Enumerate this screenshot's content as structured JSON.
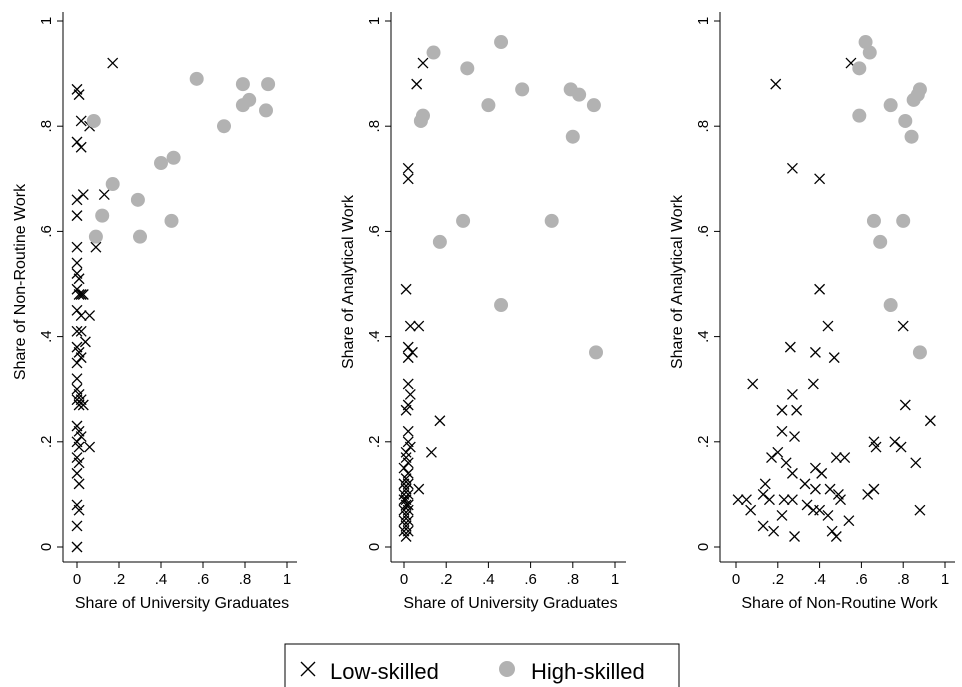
{
  "colors": {
    "low": "#000000",
    "high": "#b2b2b2",
    "axis": "#000000"
  },
  "legend": {
    "low_label": "Low-skilled",
    "high_label": "High-skilled"
  },
  "chart_data": [
    {
      "type": "scatter",
      "xlabel": "Share of University Graduates",
      "ylabel": "Share of Non-Routine Work",
      "xlim": [
        0,
        1
      ],
      "ylim": [
        0,
        1
      ],
      "xticks": [
        "0",
        ".2",
        ".4",
        ".6",
        ".8",
        "1"
      ],
      "yticks": [
        "0",
        ".2",
        ".4",
        ".6",
        ".8",
        "1"
      ],
      "series": [
        {
          "name": "Low-skilled",
          "points": [
            [
              0.0,
              0.87
            ],
            [
              0.01,
              0.86
            ],
            [
              0.02,
              0.81
            ],
            [
              0.0,
              0.77
            ],
            [
              0.02,
              0.76
            ],
            [
              0.06,
              0.8
            ],
            [
              0.17,
              0.92
            ],
            [
              0.13,
              0.67
            ],
            [
              0.03,
              0.67
            ],
            [
              0.0,
              0.66
            ],
            [
              0.0,
              0.63
            ],
            [
              0.09,
              0.57
            ],
            [
              0.0,
              0.57
            ],
            [
              0.0,
              0.54
            ],
            [
              0.0,
              0.52
            ],
            [
              0.01,
              0.51
            ],
            [
              0.0,
              0.49
            ],
            [
              0.01,
              0.48
            ],
            [
              0.02,
              0.48
            ],
            [
              0.03,
              0.48
            ],
            [
              0.0,
              0.45
            ],
            [
              0.02,
              0.44
            ],
            [
              0.06,
              0.44
            ],
            [
              0.0,
              0.41
            ],
            [
              0.02,
              0.41
            ],
            [
              0.04,
              0.39
            ],
            [
              0.0,
              0.38
            ],
            [
              0.01,
              0.37
            ],
            [
              0.02,
              0.36
            ],
            [
              0.0,
              0.35
            ],
            [
              0.0,
              0.32
            ],
            [
              0.0,
              0.3
            ],
            [
              0.01,
              0.29
            ],
            [
              0.0,
              0.28
            ],
            [
              0.02,
              0.28
            ],
            [
              0.03,
              0.27
            ],
            [
              0.01,
              0.27
            ],
            [
              0.0,
              0.23
            ],
            [
              0.01,
              0.22
            ],
            [
              0.02,
              0.21
            ],
            [
              0.0,
              0.2
            ],
            [
              0.01,
              0.19
            ],
            [
              0.06,
              0.19
            ],
            [
              0.0,
              0.17
            ],
            [
              0.01,
              0.16
            ],
            [
              0.0,
              0.14
            ],
            [
              0.01,
              0.12
            ],
            [
              0.0,
              0.08
            ],
            [
              0.01,
              0.07
            ],
            [
              0.0,
              0.04
            ],
            [
              0.0,
              0.0
            ]
          ]
        },
        {
          "name": "High-skilled",
          "points": [
            [
              0.08,
              0.81
            ],
            [
              0.57,
              0.89
            ],
            [
              0.79,
              0.88
            ],
            [
              0.91,
              0.88
            ],
            [
              0.79,
              0.84
            ],
            [
              0.82,
              0.85
            ],
            [
              0.9,
              0.83
            ],
            [
              0.7,
              0.8
            ],
            [
              0.46,
              0.74
            ],
            [
              0.4,
              0.73
            ],
            [
              0.17,
              0.69
            ],
            [
              0.29,
              0.66
            ],
            [
              0.12,
              0.63
            ],
            [
              0.45,
              0.62
            ],
            [
              0.09,
              0.59
            ],
            [
              0.3,
              0.59
            ]
          ]
        }
      ]
    },
    {
      "type": "scatter",
      "xlabel": "Share of University Graduates",
      "ylabel": "Share of Analytical Work",
      "xlim": [
        0,
        1
      ],
      "ylim": [
        0,
        1
      ],
      "xticks": [
        "0",
        ".2",
        ".4",
        ".6",
        ".8",
        "1"
      ],
      "yticks": [
        "0",
        ".2",
        ".4",
        ".6",
        ".8",
        "1"
      ],
      "series": [
        {
          "name": "Low-skilled",
          "points": [
            [
              0.09,
              0.92
            ],
            [
              0.06,
              0.88
            ],
            [
              0.02,
              0.72
            ],
            [
              0.02,
              0.7
            ],
            [
              0.01,
              0.49
            ],
            [
              0.03,
              0.42
            ],
            [
              0.07,
              0.42
            ],
            [
              0.02,
              0.38
            ],
            [
              0.04,
              0.37
            ],
            [
              0.02,
              0.36
            ],
            [
              0.02,
              0.31
            ],
            [
              0.03,
              0.29
            ],
            [
              0.02,
              0.27
            ],
            [
              0.01,
              0.26
            ],
            [
              0.17,
              0.24
            ],
            [
              0.02,
              0.22
            ],
            [
              0.02,
              0.2
            ],
            [
              0.03,
              0.19
            ],
            [
              0.13,
              0.18
            ],
            [
              0.01,
              0.18
            ],
            [
              0.01,
              0.17
            ],
            [
              0.02,
              0.16
            ],
            [
              0.0,
              0.15
            ],
            [
              0.02,
              0.14
            ],
            [
              0.01,
              0.13
            ],
            [
              0.0,
              0.12
            ],
            [
              0.02,
              0.12
            ],
            [
              0.07,
              0.11
            ],
            [
              0.01,
              0.11
            ],
            [
              0.0,
              0.1
            ],
            [
              0.02,
              0.1
            ],
            [
              0.01,
              0.09
            ],
            [
              0.0,
              0.09
            ],
            [
              0.02,
              0.08
            ],
            [
              0.01,
              0.08
            ],
            [
              0.0,
              0.07
            ],
            [
              0.02,
              0.07
            ],
            [
              0.01,
              0.06
            ],
            [
              0.0,
              0.05
            ],
            [
              0.02,
              0.05
            ],
            [
              0.01,
              0.04
            ],
            [
              0.0,
              0.03
            ],
            [
              0.02,
              0.03
            ],
            [
              0.01,
              0.02
            ]
          ]
        },
        {
          "name": "High-skilled",
          "points": [
            [
              0.46,
              0.96
            ],
            [
              0.14,
              0.94
            ],
            [
              0.3,
              0.91
            ],
            [
              0.79,
              0.87
            ],
            [
              0.56,
              0.87
            ],
            [
              0.83,
              0.86
            ],
            [
              0.9,
              0.84
            ],
            [
              0.4,
              0.84
            ],
            [
              0.09,
              0.82
            ],
            [
              0.08,
              0.81
            ],
            [
              0.8,
              0.78
            ],
            [
              0.28,
              0.62
            ],
            [
              0.7,
              0.62
            ],
            [
              0.17,
              0.58
            ],
            [
              0.46,
              0.46
            ],
            [
              0.91,
              0.37
            ]
          ]
        }
      ]
    },
    {
      "type": "scatter",
      "xlabel": "Share of Non-Routine Work",
      "ylabel": "Share of Analytical Work",
      "xlim": [
        0,
        1
      ],
      "ylim": [
        0,
        1
      ],
      "xticks": [
        "0",
        ".2",
        ".4",
        ".6",
        ".8",
        "1"
      ],
      "yticks": [
        "0",
        ".2",
        ".4",
        ".6",
        ".8",
        "1"
      ],
      "series": [
        {
          "name": "Low-skilled",
          "points": [
            [
              0.55,
              0.92
            ],
            [
              0.19,
              0.88
            ],
            [
              0.27,
              0.72
            ],
            [
              0.4,
              0.7
            ],
            [
              0.4,
              0.49
            ],
            [
              0.44,
              0.42
            ],
            [
              0.8,
              0.42
            ],
            [
              0.26,
              0.38
            ],
            [
              0.38,
              0.37
            ],
            [
              0.47,
              0.36
            ],
            [
              0.08,
              0.31
            ],
            [
              0.37,
              0.31
            ],
            [
              0.27,
              0.29
            ],
            [
              0.81,
              0.27
            ],
            [
              0.22,
              0.26
            ],
            [
              0.29,
              0.26
            ],
            [
              0.93,
              0.24
            ],
            [
              0.22,
              0.22
            ],
            [
              0.28,
              0.21
            ],
            [
              0.66,
              0.2
            ],
            [
              0.76,
              0.2
            ],
            [
              0.67,
              0.19
            ],
            [
              0.79,
              0.19
            ],
            [
              0.2,
              0.18
            ],
            [
              0.17,
              0.17
            ],
            [
              0.48,
              0.17
            ],
            [
              0.52,
              0.17
            ],
            [
              0.86,
              0.16
            ],
            [
              0.24,
              0.16
            ],
            [
              0.38,
              0.15
            ],
            [
              0.27,
              0.14
            ],
            [
              0.41,
              0.14
            ],
            [
              0.14,
              0.12
            ],
            [
              0.33,
              0.12
            ],
            [
              0.38,
              0.11
            ],
            [
              0.45,
              0.11
            ],
            [
              0.66,
              0.11
            ],
            [
              0.13,
              0.1
            ],
            [
              0.49,
              0.1
            ],
            [
              0.5,
              0.09
            ],
            [
              0.63,
              0.1
            ],
            [
              0.01,
              0.09
            ],
            [
              0.05,
              0.09
            ],
            [
              0.16,
              0.09
            ],
            [
              0.23,
              0.09
            ],
            [
              0.27,
              0.09
            ],
            [
              0.34,
              0.08
            ],
            [
              0.4,
              0.07
            ],
            [
              0.07,
              0.07
            ],
            [
              0.22,
              0.06
            ],
            [
              0.44,
              0.06
            ],
            [
              0.54,
              0.05
            ],
            [
              0.88,
              0.07
            ],
            [
              0.13,
              0.04
            ],
            [
              0.18,
              0.03
            ],
            [
              0.46,
              0.03
            ],
            [
              0.48,
              0.02
            ],
            [
              0.28,
              0.02
            ],
            [
              0.37,
              0.07
            ]
          ]
        },
        {
          "name": "High-skilled",
          "points": [
            [
              0.62,
              0.96
            ],
            [
              0.64,
              0.94
            ],
            [
              0.59,
              0.91
            ],
            [
              0.88,
              0.87
            ],
            [
              0.87,
              0.86
            ],
            [
              0.85,
              0.85
            ],
            [
              0.74,
              0.84
            ],
            [
              0.59,
              0.82
            ],
            [
              0.81,
              0.81
            ],
            [
              0.84,
              0.78
            ],
            [
              0.66,
              0.62
            ],
            [
              0.8,
              0.62
            ],
            [
              0.69,
              0.58
            ],
            [
              0.74,
              0.46
            ],
            [
              0.88,
              0.37
            ]
          ]
        }
      ]
    }
  ]
}
